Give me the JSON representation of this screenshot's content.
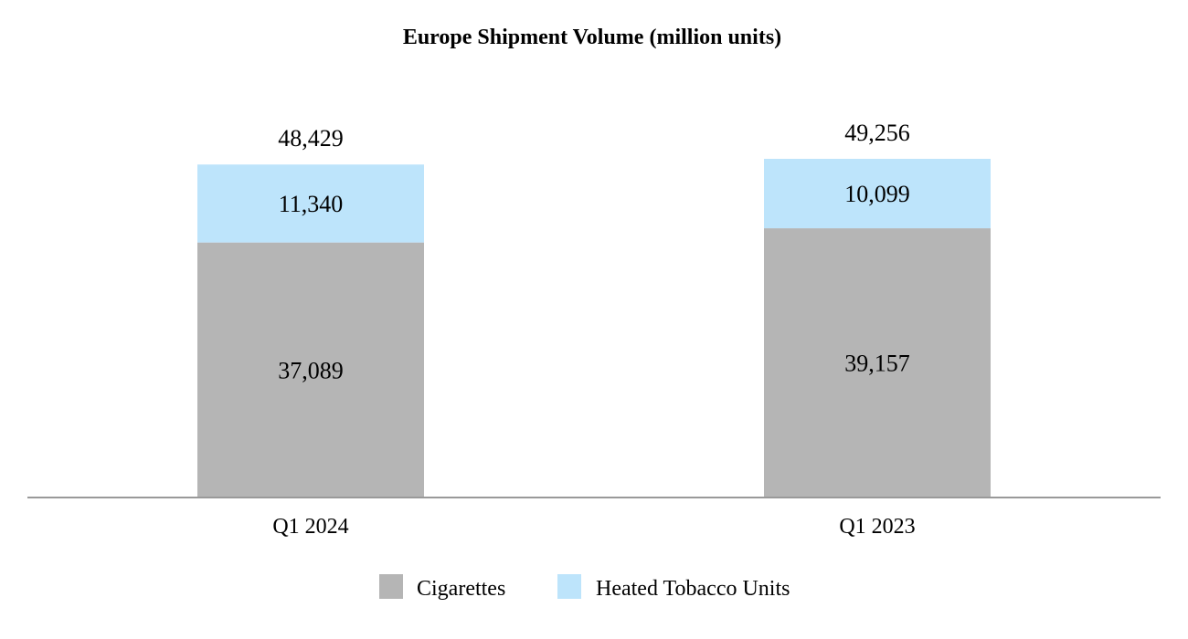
{
  "chart_data": {
    "type": "bar",
    "stacked": true,
    "title": "Europe Shipment Volume (million units)",
    "xlabel": "",
    "ylabel": "",
    "categories": [
      "Q1 2024",
      "Q1 2023"
    ],
    "series": [
      {
        "name": "Cigarettes",
        "values": [
          37089,
          39157
        ],
        "color": "#b5b5b5"
      },
      {
        "name": "Heated Tobacco Units",
        "values": [
          11340,
          10099
        ],
        "color": "#bde4fb"
      }
    ],
    "totals": [
      "48,429",
      "49,256"
    ],
    "value_labels": [
      [
        "37,089",
        "39,157"
      ],
      [
        "11,340",
        "10,099"
      ]
    ],
    "ylim": [
      0,
      49256
    ],
    "grid": false,
    "legend_position": "bottom-center",
    "axis_color": "#999999"
  }
}
